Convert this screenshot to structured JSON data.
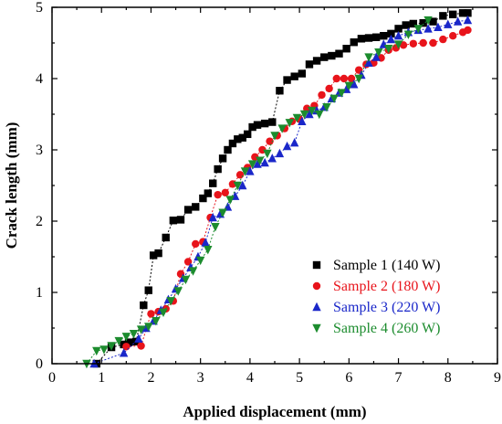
{
  "chart_data": {
    "type": "scatter",
    "xlabel": "Applied displacement (mm)",
    "ylabel": "Crack length (mm)",
    "xlim": [
      0,
      9
    ],
    "ylim": [
      0,
      5
    ],
    "xticks": [
      "0",
      "1",
      "2",
      "3",
      "4",
      "5",
      "6",
      "7",
      "8",
      "9"
    ],
    "yticks": [
      "0",
      "1",
      "2",
      "3",
      "4",
      "5"
    ],
    "legend_position": "bottom-right",
    "series": [
      {
        "name": "Sample 1 (140 W)",
        "color": "#000000",
        "marker": "square",
        "x": [
          0.9,
          1.2,
          1.45,
          1.55,
          1.7,
          1.85,
          1.95,
          2.05,
          2.15,
          2.3,
          2.45,
          2.6,
          2.75,
          2.9,
          3.05,
          3.15,
          3.25,
          3.35,
          3.45,
          3.55,
          3.65,
          3.75,
          3.85,
          3.95,
          4.05,
          4.15,
          4.3,
          4.45,
          4.6,
          4.75,
          4.9,
          5.05,
          5.2,
          5.35,
          5.5,
          5.65,
          5.8,
          5.95,
          6.1,
          6.25,
          6.4,
          6.55,
          6.7,
          6.85,
          7.0,
          7.15,
          7.3,
          7.5,
          7.7,
          7.9,
          8.1,
          8.3,
          8.4
        ],
        "y": [
          0.0,
          0.23,
          0.27,
          0.3,
          0.31,
          0.82,
          1.03,
          1.52,
          1.55,
          1.77,
          2.01,
          2.02,
          2.16,
          2.2,
          2.32,
          2.39,
          2.53,
          2.73,
          2.88,
          3.0,
          3.09,
          3.15,
          3.17,
          3.22,
          3.32,
          3.35,
          3.37,
          3.39,
          3.83,
          3.98,
          4.03,
          4.07,
          4.2,
          4.25,
          4.3,
          4.32,
          4.35,
          4.42,
          4.51,
          4.56,
          4.57,
          4.58,
          4.6,
          4.63,
          4.7,
          4.75,
          4.77,
          4.78,
          4.8,
          4.88,
          4.9,
          4.92,
          4.92
        ]
      },
      {
        "name": "Sample 2 (180 W)",
        "color": "#e8141b",
        "marker": "circle",
        "x": [
          1.5,
          1.8,
          2.0,
          2.15,
          2.3,
          2.45,
          2.6,
          2.75,
          2.9,
          3.05,
          3.2,
          3.35,
          3.5,
          3.65,
          3.8,
          3.95,
          4.1,
          4.25,
          4.4,
          4.55,
          4.7,
          4.85,
          5.0,
          5.15,
          5.3,
          5.45,
          5.6,
          5.75,
          5.9,
          6.05,
          6.2,
          6.35,
          6.5,
          6.65,
          6.8,
          6.95,
          7.1,
          7.3,
          7.5,
          7.7,
          7.9,
          8.1,
          8.3,
          8.4
        ],
        "y": [
          0.24,
          0.25,
          0.7,
          0.73,
          0.77,
          0.88,
          1.26,
          1.43,
          1.68,
          1.71,
          2.05,
          2.37,
          2.4,
          2.52,
          2.65,
          2.75,
          2.9,
          3.0,
          3.12,
          3.2,
          3.3,
          3.4,
          3.43,
          3.58,
          3.62,
          3.77,
          3.86,
          4.0,
          4.0,
          4.0,
          4.12,
          4.2,
          4.22,
          4.29,
          4.4,
          4.43,
          4.47,
          4.49,
          4.5,
          4.5,
          4.55,
          4.6,
          4.65,
          4.68
        ]
      },
      {
        "name": "Sample 3 (220 W)",
        "color": "#1a27c9",
        "marker": "triangle-up",
        "x": [
          0.85,
          1.45,
          1.75,
          1.9,
          2.05,
          2.2,
          2.35,
          2.5,
          2.65,
          2.8,
          2.95,
          3.1,
          3.25,
          3.4,
          3.55,
          3.7,
          3.85,
          4.0,
          4.15,
          4.3,
          4.45,
          4.6,
          4.75,
          4.9,
          5.05,
          5.2,
          5.35,
          5.5,
          5.65,
          5.8,
          5.95,
          6.1,
          6.25,
          6.4,
          6.55,
          6.7,
          6.85,
          7.0,
          7.2,
          7.4,
          7.6,
          7.8,
          8.0,
          8.2,
          8.4
        ],
        "y": [
          0.0,
          0.15,
          0.35,
          0.5,
          0.6,
          0.75,
          0.9,
          1.05,
          1.2,
          1.35,
          1.5,
          1.7,
          2.05,
          2.1,
          2.2,
          2.35,
          2.5,
          2.7,
          2.8,
          2.82,
          2.88,
          2.95,
          3.05,
          3.1,
          3.4,
          3.5,
          3.55,
          3.6,
          3.72,
          3.8,
          3.85,
          3.92,
          4.05,
          4.22,
          4.3,
          4.48,
          4.55,
          4.6,
          4.65,
          4.68,
          4.7,
          4.72,
          4.76,
          4.8,
          4.82
        ]
      },
      {
        "name": "Sample 4 (260 W)",
        "color": "#1c8c2e",
        "marker": "triangle-down",
        "x": [
          0.7,
          0.9,
          1.05,
          1.2,
          1.35,
          1.5,
          1.65,
          1.8,
          1.95,
          2.1,
          2.25,
          2.4,
          2.55,
          2.7,
          2.85,
          3.0,
          3.15,
          3.3,
          3.45,
          3.6,
          3.75,
          3.9,
          4.05,
          4.2,
          4.35,
          4.5,
          4.65,
          4.8,
          4.95,
          5.1,
          5.25,
          5.4,
          5.55,
          5.7,
          5.85,
          6.0,
          6.2,
          6.4,
          6.6,
          6.8,
          7.0,
          7.2,
          7.4,
          7.6
        ],
        "y": [
          0.0,
          0.18,
          0.2,
          0.25,
          0.32,
          0.38,
          0.42,
          0.48,
          0.52,
          0.6,
          0.72,
          0.88,
          1.02,
          1.18,
          1.3,
          1.45,
          1.6,
          1.92,
          2.12,
          2.3,
          2.5,
          2.7,
          2.8,
          2.85,
          2.95,
          3.2,
          3.3,
          3.38,
          3.45,
          3.5,
          3.55,
          3.5,
          3.6,
          3.72,
          3.8,
          3.9,
          4.0,
          4.3,
          4.37,
          4.42,
          4.48,
          4.62,
          4.7,
          4.82
        ]
      }
    ]
  }
}
